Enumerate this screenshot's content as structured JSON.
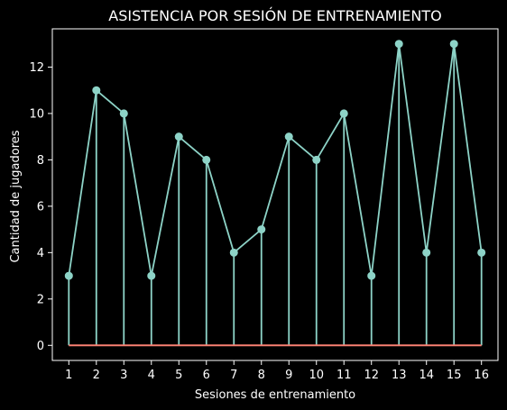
{
  "chart_data": {
    "type": "line",
    "title": "ASISTENCIA POR SESIÓN DE ENTRENAMIENTO",
    "xlabel": "Sesiones de entrenamiento",
    "ylabel": "Cantidad de jugadores",
    "x": [
      1,
      2,
      3,
      4,
      5,
      6,
      7,
      8,
      9,
      10,
      11,
      12,
      13,
      14,
      15,
      16
    ],
    "values": [
      3,
      11,
      10,
      3,
      9,
      8,
      4,
      5,
      9,
      8,
      10,
      3,
      13,
      4,
      13,
      4
    ],
    "xlim": [
      0.4,
      16.6
    ],
    "ylim": [
      -0.65,
      13.65
    ],
    "xticks": [
      "1",
      "2",
      "3",
      "4",
      "5",
      "6",
      "7",
      "8",
      "9",
      "10",
      "11",
      "12",
      "13",
      "14",
      "15",
      "16"
    ],
    "yticks": [
      "0",
      "2",
      "4",
      "6",
      "8",
      "10",
      "12"
    ],
    "grid": false,
    "stems": true,
    "baseline": 0,
    "colors": {
      "line": "#8dd3c7",
      "baseline": "#fa8072",
      "background": "#000000",
      "text": "#ffffff"
    }
  }
}
